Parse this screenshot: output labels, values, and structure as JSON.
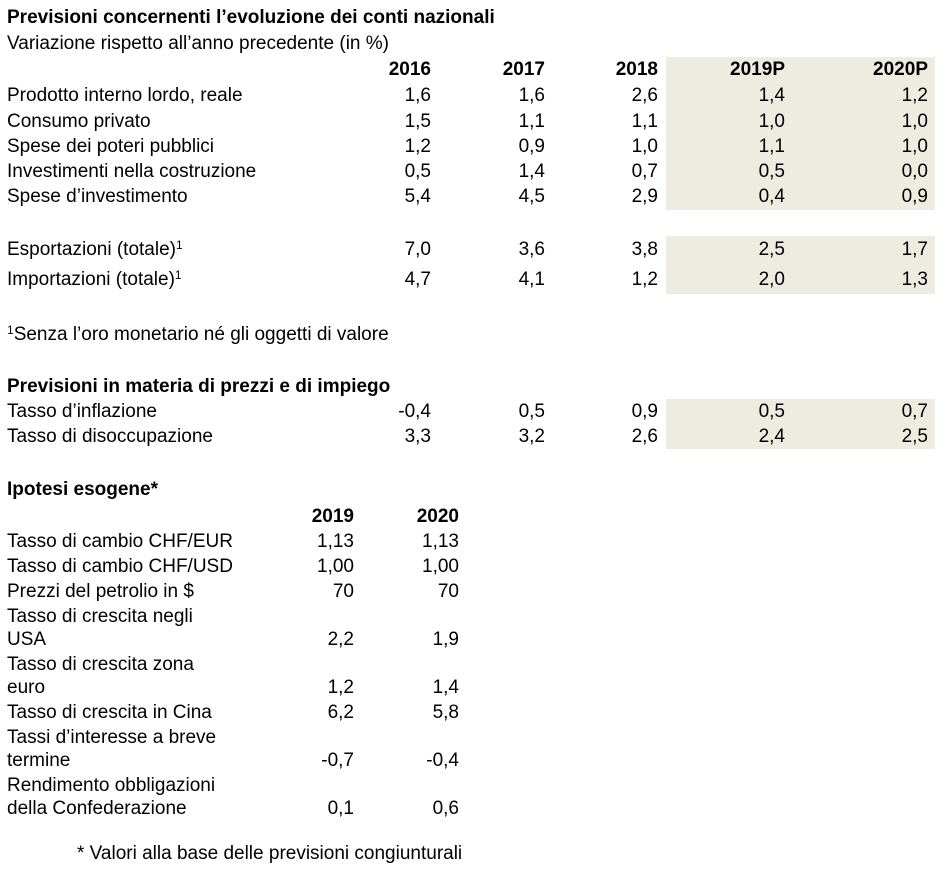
{
  "accounts": {
    "title": "Previsioni concernenti l’evoluzione dei conti nazionali",
    "subtitle": "Variazione rispetto all’anno precedente (in %)",
    "header": [
      "2016",
      "2017",
      "2018",
      "2019P",
      "2020P"
    ],
    "rows": [
      {
        "label": "Prodotto interno lordo, reale",
        "values": [
          "1,6",
          "1,6",
          "2,6",
          "1,4",
          "1,2"
        ]
      },
      {
        "label": "Consumo privato",
        "values": [
          "1,5",
          "1,1",
          "1,1",
          "1,0",
          "1,0"
        ]
      },
      {
        "label": "Spese dei poteri pubblici",
        "values": [
          "1,2",
          "0,9",
          "1,0",
          "1,1",
          "1,0"
        ]
      },
      {
        "label": "Investimenti nella costruzione",
        "values": [
          "0,5",
          "1,4",
          "0,7",
          "0,5",
          "0,0"
        ]
      },
      {
        "label": "Spese d’investimento",
        "values": [
          "5,4",
          "4,5",
          "2,9",
          "0,4",
          "0,9"
        ]
      },
      {
        "label": "Esportazioni (totale)",
        "note": "1",
        "values": [
          "7,0",
          "3,6",
          "3,8",
          "2,5",
          "1,7"
        ]
      },
      {
        "label": "Importazioni (totale)",
        "note": "1",
        "values": [
          "4,7",
          "4,1",
          "1,2",
          "2,0",
          "1,3"
        ]
      }
    ],
    "footnote_mark": "1",
    "footnote": "Senza l’oro monetario né gli oggetti di valore"
  },
  "prices": {
    "title": "Previsioni in materia di prezzi e di impiego",
    "rows": [
      {
        "label": "Tasso d’inflazione",
        "values": [
          "-0,4",
          "0,5",
          "0,9",
          "0,5",
          "0,7"
        ]
      },
      {
        "label": "Tasso di disoccupazione",
        "values": [
          "3,3",
          "3,2",
          "2,6",
          "2,4",
          "2,5"
        ]
      }
    ]
  },
  "assumptions": {
    "title": "Ipotesi esogene*",
    "header": [
      "2019",
      "2020"
    ],
    "rows": [
      {
        "label": [
          "Tasso di cambio CHF/EUR"
        ],
        "values": [
          "1,13",
          "1,13"
        ]
      },
      {
        "label": [
          "Tasso di cambio CHF/USD"
        ],
        "values": [
          "1,00",
          "1,00"
        ]
      },
      {
        "label": [
          "Prezzi del petrolio in $"
        ],
        "values": [
          "70",
          "70"
        ]
      },
      {
        "label": [
          "Tasso di crescita negli",
          "USA"
        ],
        "values": [
          "2,2",
          "1,9"
        ]
      },
      {
        "label": [
          "Tasso di crescita zona",
          "euro"
        ],
        "values": [
          "1,2",
          "1,4"
        ]
      },
      {
        "label": [
          "Tasso di crescita in Cina"
        ],
        "values": [
          "6,2",
          "5,8"
        ]
      },
      {
        "label": [
          "Tassi d’interesse a breve",
          "termine"
        ],
        "values": [
          "-0,7",
          "-0,4"
        ]
      },
      {
        "label": [
          "Rendimento obbligazioni",
          "della Confederazione"
        ],
        "values": [
          "0,1",
          "0,6"
        ]
      }
    ],
    "footnote": "* Valori alla base delle previsioni congiunturali"
  }
}
